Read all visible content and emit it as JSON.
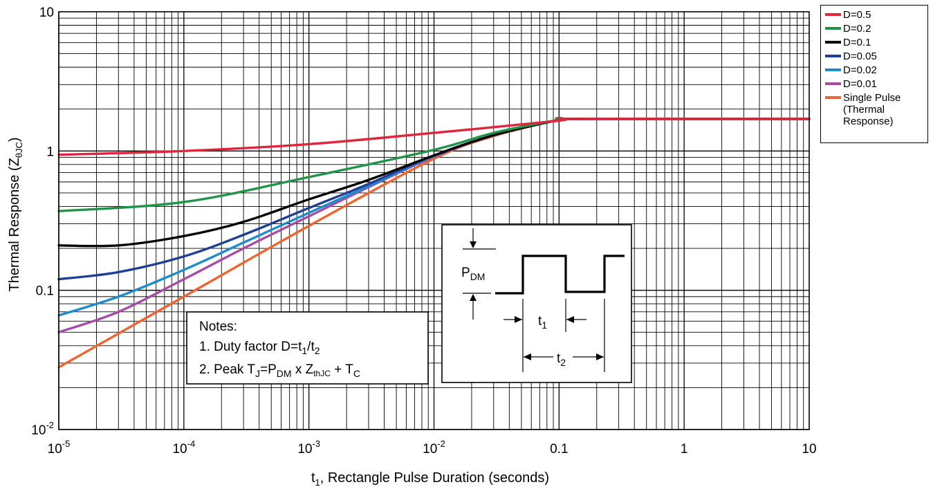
{
  "chart_data": {
    "type": "line",
    "title": "",
    "xlabel": {
      "main": "t",
      "sub": "1",
      "rest": ", Rectangle Pulse Duration (seconds)"
    },
    "ylabel": {
      "main": "Thermal Response (Z",
      "sub": "θJC",
      "rest": ")"
    },
    "x_scale": "log",
    "y_scale": "log",
    "xlim": [
      1e-05,
      10
    ],
    "ylim": [
      0.01,
      10
    ],
    "grid": true,
    "legend_position": "outside-right-top",
    "x_ticks": [
      {
        "value": 1e-05,
        "base": "10",
        "exp": "-5"
      },
      {
        "value": 0.0001,
        "base": "10",
        "exp": "-4"
      },
      {
        "value": 0.001,
        "base": "10",
        "exp": "-3"
      },
      {
        "value": 0.01,
        "base": "10",
        "exp": "-2"
      },
      {
        "value": 0.1,
        "base": "0.1",
        "exp": ""
      },
      {
        "value": 1,
        "base": "1",
        "exp": ""
      },
      {
        "value": 10,
        "base": "10",
        "exp": ""
      }
    ],
    "y_ticks": [
      {
        "value": 0.01,
        "base": "10",
        "exp": "-2"
      },
      {
        "value": 0.1,
        "base": "0.1",
        "exp": ""
      },
      {
        "value": 1,
        "base": "1",
        "exp": ""
      },
      {
        "value": 10,
        "base": "10",
        "exp": ""
      }
    ],
    "series": [
      {
        "name": "D=0.5",
        "color": "#e0263c",
        "x": [
          1e-05,
          0.0001,
          0.001,
          0.01,
          0.1,
          0.11,
          1,
          10
        ],
        "y": [
          0.94,
          1.0,
          1.12,
          1.35,
          1.65,
          1.7,
          1.7,
          1.7
        ]
      },
      {
        "name": "D=0.2",
        "color": "#1f9448",
        "x": [
          1e-05,
          0.0001,
          0.001,
          0.01,
          0.03,
          0.1,
          0.11,
          1,
          10
        ],
        "y": [
          0.37,
          0.43,
          0.65,
          1.02,
          1.35,
          1.68,
          1.7,
          1.7,
          1.7
        ]
      },
      {
        "name": "D=0.1",
        "color": "#000000",
        "x": [
          1e-05,
          3e-05,
          0.0001,
          0.0003,
          0.001,
          0.003,
          0.01,
          0.03,
          0.1,
          0.11,
          1,
          10
        ],
        "y": [
          0.21,
          0.21,
          0.245,
          0.31,
          0.45,
          0.62,
          0.93,
          1.3,
          1.68,
          1.7,
          1.7,
          1.7
        ]
      },
      {
        "name": "D=0.05",
        "color": "#1f3f97",
        "x": [
          1e-05,
          3e-05,
          0.0001,
          0.0003,
          0.001,
          0.003,
          0.01,
          0.03,
          0.1,
          0.11,
          1,
          10
        ],
        "y": [
          0.12,
          0.135,
          0.175,
          0.25,
          0.39,
          0.58,
          0.93,
          1.3,
          1.68,
          1.7,
          1.7,
          1.7
        ]
      },
      {
        "name": "D=0.02",
        "color": "#1f8bcf",
        "x": [
          1e-05,
          3e-05,
          0.0001,
          0.0003,
          0.001,
          0.003,
          0.01,
          0.03,
          0.1,
          0.11,
          1,
          10
        ],
        "y": [
          0.066,
          0.09,
          0.14,
          0.22,
          0.36,
          0.56,
          0.92,
          1.3,
          1.68,
          1.7,
          1.7,
          1.7
        ]
      },
      {
        "name": "D=0.01",
        "color": "#a64ca6",
        "x": [
          1e-05,
          3e-05,
          0.0001,
          0.0003,
          0.001,
          0.003,
          0.01,
          0.03,
          0.1,
          0.11,
          1,
          10
        ],
        "y": [
          0.05,
          0.07,
          0.12,
          0.2,
          0.34,
          0.55,
          0.91,
          1.3,
          1.68,
          1.7,
          1.7,
          1.7
        ]
      },
      {
        "name": "Single Pulse\n(Thermal\nResponse)",
        "color": "#f06430",
        "x": [
          1e-05,
          0.0001,
          0.001,
          0.01,
          0.03,
          0.1,
          0.11,
          1,
          10
        ],
        "y": [
          0.028,
          0.09,
          0.29,
          0.88,
          1.28,
          1.68,
          1.7,
          1.7,
          1.7
        ]
      }
    ],
    "notes": {
      "heading": "Notes:",
      "line1": {
        "prefix": "1.  Duty factor D=t",
        "sub1": "1",
        "mid": "/t",
        "sub2": "2"
      },
      "line2": {
        "prefix": "2.  Peak T",
        "subJ": "J",
        "mid1": "=P",
        "subDM": "DM",
        "mid2": " x Z",
        "subZ": "thJC",
        "mid3": " + T",
        "subC": "C"
      }
    },
    "pulse_diagram": {
      "pdm": {
        "main": "P",
        "sub": "DM"
      },
      "t1": {
        "main": "t",
        "sub": "1"
      },
      "t2": {
        "main": "t",
        "sub": "2"
      }
    }
  }
}
